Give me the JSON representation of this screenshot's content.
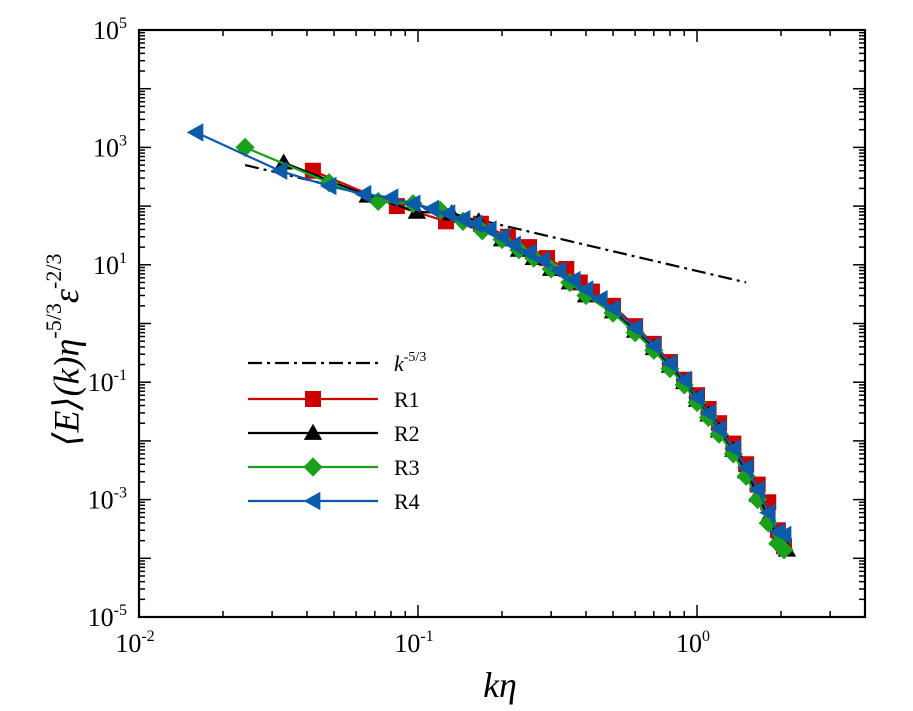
{
  "chart_data": {
    "type": "line",
    "xscale": "log",
    "yscale": "log",
    "xlim": [
      0.01,
      4.0
    ],
    "ylim": [
      1e-05,
      100000.0
    ],
    "xlabel": "kη",
    "ylabel": "⟨E⟩(k)η^{-5/3}ε^{-2/3}",
    "x_ticks": [
      {
        "base": "10",
        "exp": "-2",
        "value": 0.01
      },
      {
        "base": "10",
        "exp": "-1",
        "value": 0.1
      },
      {
        "base": "10",
        "exp": "0",
        "value": 1
      }
    ],
    "y_ticks": [
      {
        "base": "10",
        "exp": "5",
        "value": 100000
      },
      {
        "base": "10",
        "exp": "3",
        "value": 1000
      },
      {
        "base": "10",
        "exp": "1",
        "value": 10
      },
      {
        "base": "10",
        "exp": "-1",
        "value": 0.1
      },
      {
        "base": "10",
        "exp": "-3",
        "value": 0.001
      },
      {
        "base": "10",
        "exp": "-5",
        "value": 1e-05
      }
    ],
    "reference_line": {
      "name": "k^{-5/3}",
      "base": "k",
      "exp": "-5/3",
      "x": [
        0.024,
        1.5
      ],
      "y": [
        500,
        5.0
      ],
      "color": "#000000"
    },
    "series": [
      {
        "name": "R1",
        "color": "#cc0000",
        "marker": "square",
        "x": [
          0.042,
          0.084,
          0.126,
          0.168,
          0.21,
          0.25,
          0.29,
          0.34,
          0.38,
          0.42,
          0.5,
          0.6,
          0.7,
          0.8,
          0.9,
          1.0,
          1.1,
          1.2,
          1.35,
          1.5,
          1.65,
          1.8,
          1.95,
          2.05
        ],
        "y": [
          400,
          100,
          55,
          50,
          30,
          20,
          13,
          8.5,
          5.0,
          3.5,
          2.0,
          0.9,
          0.45,
          0.22,
          0.11,
          0.06,
          0.035,
          0.02,
          0.009,
          0.004,
          0.0018,
          0.0009,
          0.0003,
          0.00016
        ]
      },
      {
        "name": "R2",
        "color": "#000000",
        "marker": "triangle",
        "x": [
          0.033,
          0.066,
          0.099,
          0.132,
          0.165,
          0.2,
          0.23,
          0.26,
          0.3,
          0.35,
          0.4,
          0.5,
          0.6,
          0.7,
          0.8,
          0.9,
          1.0,
          1.1,
          1.2,
          1.35,
          1.5,
          1.65,
          1.8,
          1.95,
          2.1
        ],
        "y": [
          550,
          150,
          80,
          75,
          55,
          27,
          18,
          13,
          8.5,
          5.0,
          3.0,
          1.6,
          0.75,
          0.38,
          0.19,
          0.1,
          0.05,
          0.028,
          0.015,
          0.007,
          0.003,
          0.0012,
          0.0005,
          0.00022,
          0.00014
        ]
      },
      {
        "name": "R3",
        "color": "#1aa01a",
        "marker": "diamond",
        "x": [
          0.024,
          0.048,
          0.072,
          0.096,
          0.12,
          0.145,
          0.17,
          0.2,
          0.23,
          0.26,
          0.3,
          0.35,
          0.4,
          0.5,
          0.6,
          0.7,
          0.8,
          0.9,
          1.0,
          1.1,
          1.2,
          1.35,
          1.5,
          1.65,
          1.8,
          1.95,
          2.05
        ],
        "y": [
          1000,
          250,
          120,
          110,
          85,
          55,
          38,
          27,
          18,
          13,
          8.5,
          5.0,
          3.0,
          1.5,
          0.7,
          0.35,
          0.17,
          0.09,
          0.045,
          0.025,
          0.013,
          0.006,
          0.0025,
          0.001,
          0.0004,
          0.00018,
          0.00014
        ]
      },
      {
        "name": "R4",
        "color": "#0b5ba8",
        "marker": "triangle-left",
        "x": [
          0.016,
          0.032,
          0.048,
          0.064,
          0.08,
          0.096,
          0.112,
          0.128,
          0.145,
          0.16,
          0.18,
          0.2,
          0.22,
          0.25,
          0.28,
          0.32,
          0.36,
          0.4,
          0.45,
          0.5,
          0.6,
          0.7,
          0.8,
          0.9,
          1.0,
          1.1,
          1.2,
          1.35,
          1.5,
          1.65,
          1.8,
          1.95,
          2.05
        ],
        "y": [
          1800,
          400,
          220,
          160,
          140,
          110,
          90,
          75,
          60,
          50,
          40,
          30,
          22,
          16,
          12,
          8,
          5.5,
          3.8,
          2.6,
          1.8,
          0.85,
          0.42,
          0.21,
          0.11,
          0.055,
          0.03,
          0.016,
          0.0075,
          0.0035,
          0.0015,
          0.0006,
          0.00028,
          0.00025
        ]
      }
    ]
  }
}
